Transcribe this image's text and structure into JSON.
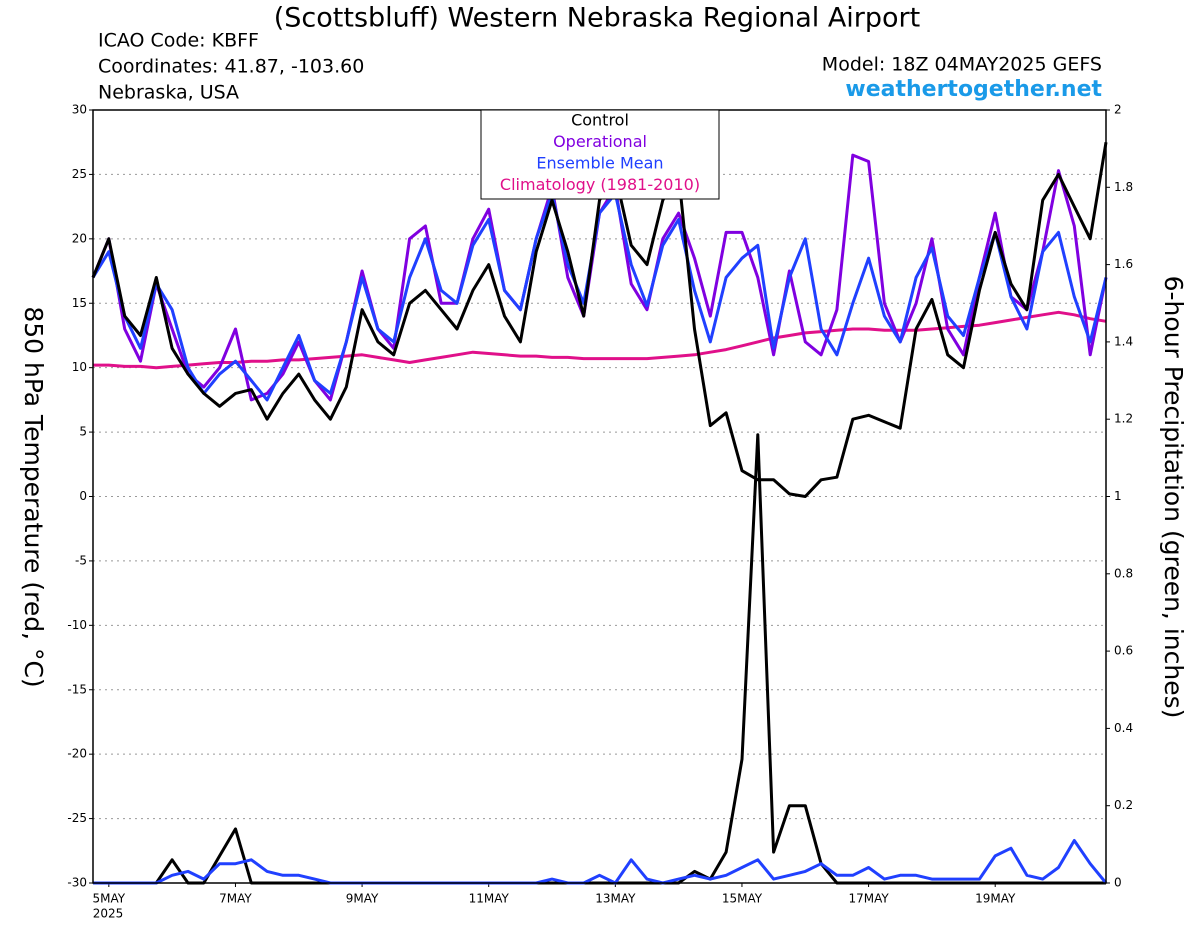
{
  "chart_data": {
    "type": "line",
    "title": "(Scottsbluff) Western Nebraska Regional Airport",
    "info": [
      "ICAO Code: KBFF",
      "Coordinates: 41.87, -103.60",
      "Nebraska, USA"
    ],
    "model": "Model: 18Z 04MAY2025 GEFS",
    "source": "weathertogether.net",
    "year_label": "2025",
    "ylabel": "850 hPa Temperature (red, °C)",
    "y2label": "6-hour Precipitation (green, inches)",
    "grid": true,
    "legend": "top",
    "xlim": [
      -0.25,
      15.75
    ],
    "xticks": [
      {
        "value": 0,
        "label": "5MAY"
      },
      {
        "value": 2,
        "label": "7MAY"
      },
      {
        "value": 4,
        "label": "9MAY"
      },
      {
        "value": 6,
        "label": "11MAY"
      },
      {
        "value": 8,
        "label": "13MAY"
      },
      {
        "value": 10,
        "label": "15MAY"
      },
      {
        "value": 12,
        "label": "17MAY"
      },
      {
        "value": 14,
        "label": "19MAY"
      }
    ],
    "ylim": [
      -30,
      30
    ],
    "yticks": [
      -30,
      -25,
      -20,
      -15,
      -10,
      -5,
      0,
      5,
      10,
      15,
      20,
      25,
      30
    ],
    "y2lim": [
      0,
      2
    ],
    "y2ticks": [
      0,
      0.2,
      0.4,
      0.6,
      0.8,
      1,
      1.2,
      1.4,
      1.6,
      1.8,
      2
    ],
    "x": [
      -0.25,
      0,
      0.25,
      0.5,
      0.75,
      1,
      1.25,
      1.5,
      1.75,
      2,
      2.25,
      2.5,
      2.75,
      3,
      3.25,
      3.5,
      3.75,
      4,
      4.25,
      4.5,
      4.75,
      5,
      5.25,
      5.5,
      5.75,
      6,
      6.25,
      6.5,
      6.75,
      7,
      7.25,
      7.5,
      7.75,
      8,
      8.25,
      8.5,
      8.75,
      9,
      9.25,
      9.5,
      9.75,
      10,
      10.25,
      10.5,
      10.75,
      11,
      11.25,
      11.5,
      11.75,
      12,
      12.25,
      12.5,
      12.75,
      13,
      13.25,
      13.5,
      13.75,
      14,
      14.25,
      14.5,
      14.75,
      15,
      15.25,
      15.5,
      15.75
    ],
    "series": [
      {
        "name": "Climatology (1981-2010)",
        "color": "#e0108a",
        "width": 3,
        "values": [
          10.2,
          10.2,
          10.1,
          10.1,
          10.0,
          10.1,
          10.2,
          10.3,
          10.4,
          10.4,
          10.5,
          10.5,
          10.6,
          10.6,
          10.7,
          10.8,
          10.9,
          11.0,
          10.8,
          10.6,
          10.4,
          10.6,
          10.8,
          11.0,
          11.2,
          11.1,
          11.0,
          10.9,
          10.9,
          10.8,
          10.8,
          10.7,
          10.7,
          10.7,
          10.7,
          10.7,
          10.8,
          10.9,
          11.0,
          11.2,
          11.4,
          11.7,
          12.0,
          12.3,
          12.5,
          12.7,
          12.8,
          12.9,
          13.0,
          13.0,
          12.9,
          12.9,
          12.9,
          13.0,
          13.1,
          13.2,
          13.3,
          13.5,
          13.7,
          13.9,
          14.1,
          14.3,
          14.1,
          13.8,
          13.6
        ]
      },
      {
        "name": "Control",
        "color": "#000000",
        "width": 3,
        "values": [
          17,
          20,
          14,
          12.5,
          17,
          11.5,
          9.5,
          8,
          7,
          8,
          8.3,
          6,
          8,
          9.5,
          7.5,
          6,
          8.5,
          14.5,
          12,
          11,
          15,
          16,
          14.5,
          13,
          16,
          18,
          14,
          12,
          19,
          23,
          19,
          14,
          23,
          25,
          19.5,
          18,
          23,
          25,
          13,
          5.5,
          6.5,
          2,
          1.3,
          1.3,
          0.2,
          0,
          1.3,
          1.5,
          6,
          6.3,
          5.8,
          5.3,
          13,
          15.3,
          11,
          10,
          16,
          20.5,
          16.5,
          14.5,
          23,
          25,
          22.5,
          20,
          27.5
        ]
      },
      {
        "name": "Operational",
        "color": "#8000e0",
        "width": 3,
        "values": [
          17,
          20,
          13,
          10.5,
          16.5,
          13,
          9.5,
          8.5,
          10,
          13,
          7.5,
          8,
          9.5,
          12,
          9,
          7.5,
          12,
          17.5,
          13,
          11.5,
          20,
          21,
          15,
          15,
          20,
          22.3,
          16,
          14.5,
          20,
          24,
          17,
          14,
          22,
          24,
          16.5,
          14.5,
          20,
          22,
          18.5,
          14,
          20.5,
          20.5,
          17,
          11,
          17.5,
          12,
          11,
          14.5,
          26.5,
          26,
          15,
          12,
          15,
          20,
          13,
          11,
          17,
          22,
          15.5,
          14.5,
          19,
          25.3,
          21,
          11,
          17
        ]
      },
      {
        "name": "Ensemble Mean",
        "color": "#2040ff",
        "width": 3,
        "values": [
          17,
          19,
          14,
          11.5,
          16.5,
          14.5,
          10,
          8,
          9.5,
          10.5,
          9,
          7.5,
          10,
          12.5,
          9,
          8,
          12,
          17,
          13,
          12,
          17,
          20,
          16,
          15,
          19.5,
          21.5,
          16,
          14.5,
          20,
          23.5,
          18,
          15,
          22,
          23.5,
          18,
          14.8,
          19.5,
          21.5,
          16,
          12,
          17,
          18.5,
          19.5,
          11.5,
          17,
          20,
          13,
          11,
          15,
          18.5,
          14,
          12,
          17,
          19.3,
          14,
          12.5,
          17,
          20.5,
          15.5,
          13,
          19,
          20.5,
          15.5,
          12,
          17
        ]
      },
      {
        "axis": "y2",
        "color": "#000000",
        "width": 3,
        "values": [
          0,
          0,
          0,
          0,
          0,
          0.06,
          0,
          0,
          0.07,
          0.14,
          0,
          0,
          0,
          0,
          0,
          0,
          0,
          0,
          0,
          0,
          0,
          0,
          0,
          0,
          0,
          0,
          0,
          0,
          0,
          0,
          0,
          0,
          0,
          0,
          0,
          0,
          0,
          0,
          0.03,
          0.01,
          0.08,
          0.32,
          1.16,
          0.08,
          0.2,
          0.2,
          0.05,
          0,
          0,
          0,
          0,
          0,
          0,
          0,
          0,
          0,
          0,
          0,
          0,
          0,
          0,
          0,
          0,
          0,
          0
        ]
      },
      {
        "axis": "y2",
        "color": "#2040ff",
        "width": 3,
        "values": [
          0,
          0,
          0,
          0,
          0,
          0.02,
          0.03,
          0.01,
          0.05,
          0.05,
          0.06,
          0.03,
          0.02,
          0.02,
          0.01,
          0,
          0,
          0,
          0,
          0,
          0,
          0,
          0,
          0,
          0,
          0,
          0,
          0,
          0,
          0.01,
          0,
          0,
          0.02,
          0,
          0.06,
          0.01,
          0,
          0.01,
          0.02,
          0.01,
          0.02,
          0.04,
          0.06,
          0.01,
          0.02,
          0.03,
          0.05,
          0.02,
          0.02,
          0.04,
          0.01,
          0.02,
          0.02,
          0.01,
          0.01,
          0.01,
          0.01,
          0.07,
          0.09,
          0.02,
          0.01,
          0.04,
          0.11,
          0.05,
          0
        ]
      }
    ]
  }
}
